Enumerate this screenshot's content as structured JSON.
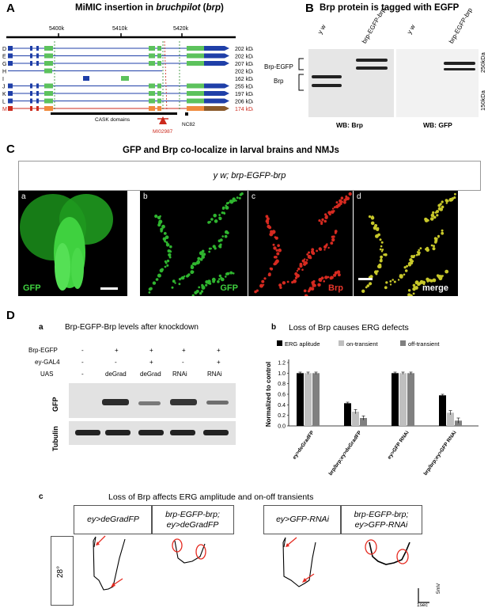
{
  "panelA": {
    "letter": "A",
    "title": "MiMIC insertion in ",
    "title_italic": "bruchpilot",
    "title_paren": "brp",
    "scale_labels": [
      "5400k",
      "5410k",
      "5420k"
    ],
    "isoforms": [
      {
        "id": "D",
        "size": "202 kDa"
      },
      {
        "id": "E",
        "size": "202 kDa"
      },
      {
        "id": "G",
        "size": "207 kDa"
      },
      {
        "id": "H",
        "size": "202 kDa"
      },
      {
        "id": "I",
        "size": "162 kDa"
      },
      {
        "id": "J",
        "size": "255 kDa"
      },
      {
        "id": "K",
        "size": "197 kDa"
      },
      {
        "id": "L",
        "size": "206 kDa"
      },
      {
        "id": "M",
        "size": "174 kDa"
      }
    ],
    "highlight_color": "#cc2a1d",
    "domain_label": "CASK domains",
    "mimic_label": "MI02987",
    "nc82_label": "NC82"
  },
  "panelB": {
    "letter": "B",
    "title": "Brp protein is tagged with EGFP",
    "lanes": [
      "y w",
      "brp-EGFP-brp",
      "y w",
      "brp-EGFP-brp"
    ],
    "band_labels": [
      "Brp-EGFP",
      "Brp"
    ],
    "mw_labels": [
      "250kDa",
      "150kDa"
    ],
    "wb_labels": [
      "WB: Brp",
      "WB: GFP"
    ]
  },
  "panelC": {
    "letter": "C",
    "title": "GFP and Brp co-localize in larval brains and NMJs",
    "genotype": "y w; brp-EGFP-brp",
    "images": [
      {
        "tag": "a",
        "channel": "GFP",
        "channel_color": "#3fd13f"
      },
      {
        "tag": "b",
        "channel": "GFP",
        "channel_color": "#3fd13f"
      },
      {
        "tag": "c",
        "channel": "Brp",
        "channel_color": "#e8352b"
      },
      {
        "tag": "d",
        "channel": "merge",
        "channel_color": "#ffffff"
      }
    ]
  },
  "panelD": {
    "letter": "D",
    "a": {
      "tag": "a",
      "title": "Brp-EGFP-Brp levels after knockdown",
      "row_labels": [
        "Brp-EGFP",
        "ey-GAL4",
        "UAS"
      ],
      "columns": [
        {
          "brp_egfp": "-",
          "ey_gal4": "-",
          "uas": "-"
        },
        {
          "brp_egfp": "+",
          "ey_gal4": "-",
          "uas": "deGrad"
        },
        {
          "brp_egfp": "+",
          "ey_gal4": "+",
          "uas": "deGrad"
        },
        {
          "brp_egfp": "+",
          "ey_gal4": "-",
          "uas": "RNAi"
        },
        {
          "brp_egfp": "+",
          "ey_gal4": "+",
          "uas": "RNAi"
        }
      ],
      "blot_labels": [
        "GFP",
        "Tubulin"
      ]
    },
    "b": {
      "tag": "b",
      "title": "Loss of Brp causes ERG defects",
      "chart_data": {
        "type": "bar",
        "title": "Loss of Brp causes ERG defects",
        "ylabel": "Normalized to control",
        "ylim": [
          0,
          1.2
        ],
        "yticks": [
          "0.0",
          "0.2",
          "0.4",
          "0.6",
          "0.8",
          "1.0",
          "1.2"
        ],
        "categories": [
          "ey>deGradFP",
          "brp/brp;ey>deGradFP",
          "ey>GFP RNAi",
          "brp/brp;ey>GFP RNAi"
        ],
        "series": [
          {
            "name": "ERG aplitude",
            "color": "#000000",
            "values": [
              1.0,
              0.43,
              1.0,
              0.58
            ],
            "errors": [
              0.02,
              0.02,
              0.02,
              0.02
            ]
          },
          {
            "name": "on-transient",
            "color": "#bfbfbf",
            "values": [
              1.0,
              0.27,
              1.0,
              0.25
            ],
            "errors": [
              0.02,
              0.04,
              0.02,
              0.04
            ]
          },
          {
            "name": "off-transient",
            "color": "#808080",
            "values": [
              1.0,
              0.15,
              1.0,
              0.1
            ],
            "errors": [
              0.02,
              0.04,
              0.02,
              0.05
            ]
          }
        ],
        "legend_position": "top"
      }
    },
    "c": {
      "tag": "c",
      "title": "Loss of Brp affects ERG amplitude and on-off transients",
      "temperature": "28°",
      "headers": [
        "ey>deGradFP",
        "brp-EGFP-brp;\ney>deGradFP",
        "ey>GFP-RNAi",
        "brp-EGFP-brp;\ney>GFP-RNAi"
      ],
      "scale_v": "5mV",
      "scale_t": "1sec"
    }
  }
}
